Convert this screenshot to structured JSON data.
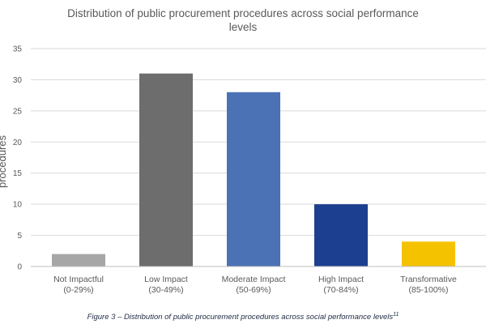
{
  "chart_data": {
    "type": "bar",
    "title_lines": [
      "Distribution of public procurement procedures across social performance",
      "levels"
    ],
    "ylabel": "procedures",
    "xlabel": "",
    "ylim": [
      0,
      35
    ],
    "yticks": [
      0,
      5,
      10,
      15,
      20,
      25,
      30,
      35
    ],
    "grid": true,
    "categories": [
      "Not Impactful (0-29%)",
      "Low Impact (30-49%)",
      "Moderate Impact (50-69%)",
      "High Impact (70-84%)",
      "Transformative (85-100%)"
    ],
    "category_lines": [
      [
        "Not Impactful",
        "(0-29%)"
      ],
      [
        "Low Impact",
        "(30-49%)"
      ],
      [
        "Moderate Impact",
        "(50-69%)"
      ],
      [
        "High Impact",
        "(70-84%)"
      ],
      [
        "Transformative",
        "(85-100%)"
      ]
    ],
    "values": [
      2,
      31,
      28,
      10,
      4
    ],
    "colors": [
      "#a6a6a6",
      "#6d6d6d",
      "#4a72b5",
      "#1d3f8f",
      "#f5c200"
    ]
  },
  "caption": {
    "text": "Figure 3 – Distribution of public procurement procedures across social performance levels",
    "footnote": "11"
  }
}
